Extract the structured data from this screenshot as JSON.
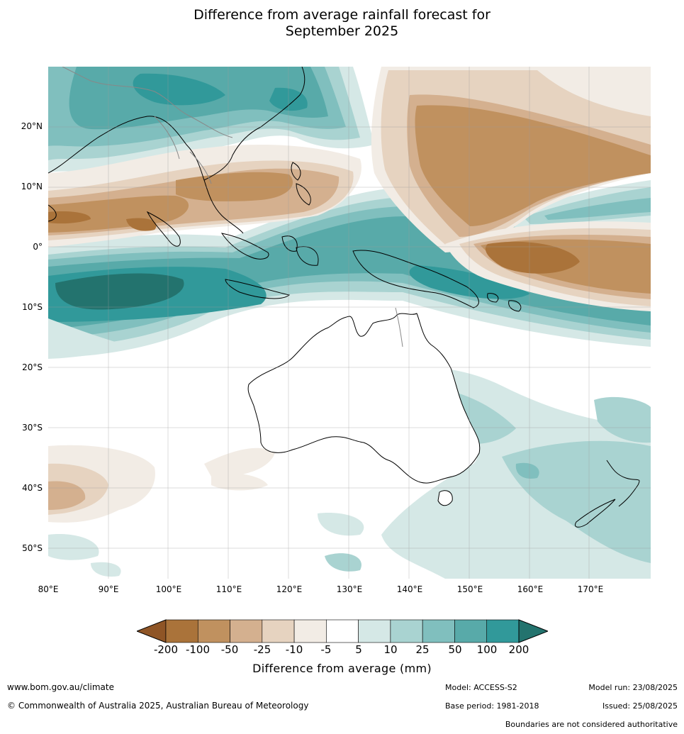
{
  "title": {
    "line1": "Difference from average rainfall forecast for",
    "line2": "September 2025"
  },
  "map": {
    "lat_labels": [
      "20°N",
      "10°N",
      "0°",
      "10°S",
      "20°S",
      "30°S",
      "40°S",
      "50°S"
    ],
    "lon_labels": [
      "80°E",
      "90°E",
      "100°E",
      "110°E",
      "120°E",
      "130°E",
      "140°E",
      "150°E",
      "160°E",
      "170°E"
    ]
  },
  "legend": {
    "ticks": [
      "-200",
      "-100",
      "-50",
      "-25",
      "-10",
      "-5",
      "5",
      "10",
      "25",
      "50",
      "100",
      "200"
    ],
    "label": "Difference from average (mm)",
    "colors": {
      "lt_-200": "#8f5526",
      "c1": "#aa733a",
      "c2": "#c0915f",
      "c3": "#d4b08f",
      "c4": "#e6d3c0",
      "c5": "#f2ece5",
      "c6": "#ffffff",
      "c7": "#d5e8e6",
      "c8": "#a9d3d1",
      "c9": "#80bfbe",
      "c10": "#58aaa9",
      "c11": "#31999a",
      "gt_200": "#23736e"
    }
  },
  "footer": {
    "website": "www.bom.gov.au/climate",
    "copyright": "© Commonwealth of Australia 2025, Australian Bureau of Meteorology",
    "model": "Model: ACCESS-S2",
    "model_run": "Model run: 23/08/2025",
    "base_period": "Base period: 1981-2018",
    "issued": "Issued: 25/08/2025",
    "disclaimer": "Boundaries are not considered authoritative"
  }
}
